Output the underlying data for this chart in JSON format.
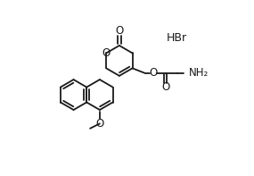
{
  "background_color": "#ffffff",
  "line_color": "#1a1a1a",
  "line_width": 1.3,
  "font_size": 8.5,
  "hbr_text": "HBr",
  "o_text": "O",
  "nh2_text": "NH₂"
}
